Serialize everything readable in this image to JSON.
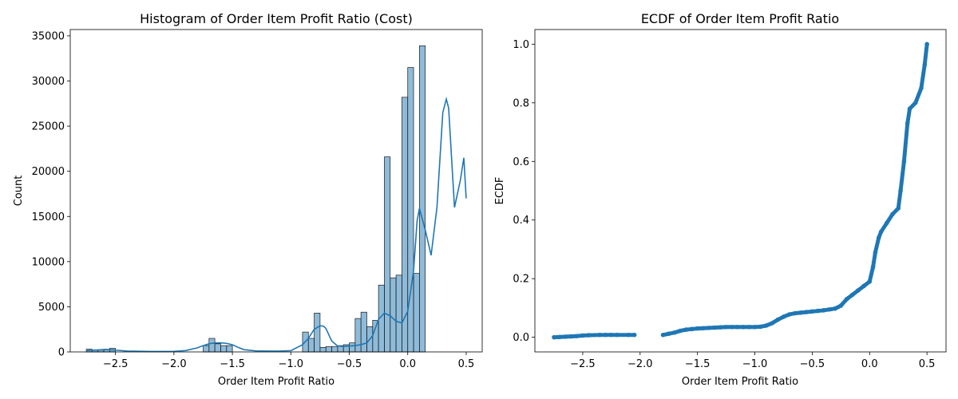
{
  "chart_data": [
    {
      "type": "bar",
      "title": "Histogram of Order Item Profit Ratio (Cost)",
      "xlabel": "Order Item Profit Ratio",
      "ylabel": "Count",
      "xlim": [
        -2.887,
        0.637
      ],
      "ylim": [
        0,
        35700
      ],
      "xticks": [
        -2.5,
        -2.0,
        -1.5,
        -1.0,
        -0.5,
        0.0,
        0.5
      ],
      "xtick_labels": [
        "−2.5",
        "−2.0",
        "−1.5",
        "−1.0",
        "−0.5",
        "0.0",
        "0.5"
      ],
      "yticks": [
        0,
        5000,
        10000,
        15000,
        20000,
        25000,
        30000,
        35000
      ],
      "ytick_labels": [
        "0",
        "5000",
        "10000",
        "15000",
        "20000",
        "25000",
        "30000",
        "35000"
      ],
      "grid": false,
      "colors": {
        "bar_fill": "#1f77b4",
        "bar_fill_opacity": 0.5,
        "bar_edge": "#1a1a1a",
        "kde_line": "#1f77b4"
      },
      "bins": {
        "edges_start": -2.75,
        "bin_width": 0.05,
        "counts": [
          300,
          200,
          200,
          300,
          400,
          0,
          0,
          0,
          0,
          0,
          0,
          0,
          0,
          0,
          0,
          0,
          0,
          0,
          0,
          0,
          700,
          1500,
          900,
          700,
          700,
          0,
          0,
          0,
          0,
          0,
          0,
          0,
          0,
          0,
          0,
          0,
          0,
          2200,
          1500,
          4300,
          500,
          600,
          600,
          700,
          800,
          1000,
          3700,
          4400,
          2800,
          3500,
          7400,
          21600,
          8200,
          8500,
          28200,
          31500,
          8700,
          33900
        ]
      },
      "kde": {
        "x": [
          -2.75,
          -2.6,
          -2.5,
          -2.4,
          -2.2,
          -2.0,
          -1.9,
          -1.8,
          -1.75,
          -1.7,
          -1.65,
          -1.6,
          -1.55,
          -1.5,
          -1.45,
          -1.4,
          -1.3,
          -1.2,
          -1.1,
          -1.0,
          -0.9,
          -0.85,
          -0.8,
          -0.75,
          -0.72,
          -0.7,
          -0.65,
          -0.6,
          -0.55,
          -0.5,
          -0.45,
          -0.4,
          -0.35,
          -0.3,
          -0.25,
          -0.2,
          -0.15,
          -0.1,
          -0.05,
          0.0,
          0.05,
          0.08,
          0.1,
          0.15,
          0.2,
          0.25,
          0.3,
          0.33,
          0.35,
          0.4,
          0.45,
          0.48,
          0.5
        ],
        "y": [
          150,
          260,
          200,
          90,
          50,
          60,
          150,
          450,
          700,
          900,
          1000,
          1000,
          950,
          800,
          500,
          250,
          120,
          90,
          90,
          140,
          800,
          1500,
          2500,
          2900,
          2850,
          2600,
          1200,
          650,
          600,
          650,
          700,
          800,
          1000,
          1800,
          3600,
          4300,
          4000,
          3400,
          3200,
          4500,
          9000,
          14500,
          15900,
          13500,
          10700,
          16000,
          26500,
          28000,
          27000,
          16000,
          19000,
          21500,
          17000
        ]
      }
    },
    {
      "type": "scatter",
      "title": "ECDF of Order Item Profit Ratio",
      "xlabel": "Order Item Profit Ratio",
      "ylabel": "ECDF",
      "xlim": [
        -2.917,
        0.666
      ],
      "ylim": [
        -0.05,
        1.05
      ],
      "xticks": [
        -2.5,
        -2.0,
        -1.5,
        -1.0,
        -0.5,
        0.0,
        0.5
      ],
      "xtick_labels": [
        "−2.5",
        "−2.0",
        "−1.5",
        "−1.0",
        "−0.5",
        "0.0",
        "0.5"
      ],
      "yticks": [
        0.0,
        0.2,
        0.4,
        0.6,
        0.8,
        1.0
      ],
      "ytick_labels": [
        "0.0",
        "0.2",
        "0.4",
        "0.6",
        "0.8",
        "1.0"
      ],
      "grid": false,
      "colors": {
        "marker": "#1f77b4"
      },
      "x": [
        -2.75,
        -2.7,
        -2.65,
        -2.6,
        -2.55,
        -2.5,
        -2.45,
        -2.35,
        -2.3,
        -2.25,
        -2.2,
        -2.1,
        -2.05,
        -1.8,
        -1.75,
        -1.7,
        -1.65,
        -1.6,
        -1.55,
        -1.5,
        -1.45,
        -1.4,
        -1.35,
        -1.3,
        -1.25,
        -1.2,
        -1.15,
        -1.1,
        -1.05,
        -1.0,
        -0.95,
        -0.9,
        -0.85,
        -0.8,
        -0.75,
        -0.7,
        -0.65,
        -0.6,
        -0.55,
        -0.5,
        -0.45,
        -0.4,
        -0.35,
        -0.3,
        -0.25,
        -0.2,
        -0.15,
        -0.1,
        -0.05,
        0.0,
        0.03,
        0.05,
        0.08,
        0.1,
        0.15,
        0.2,
        0.25,
        0.27,
        0.3,
        0.33,
        0.35,
        0.4,
        0.45,
        0.48,
        0.5
      ],
      "y": [
        0.0,
        0.001,
        0.002,
        0.003,
        0.004,
        0.006,
        0.007,
        0.008,
        0.008,
        0.008,
        0.008,
        0.008,
        0.008,
        0.008,
        0.012,
        0.016,
        0.022,
        0.026,
        0.028,
        0.03,
        0.031,
        0.032,
        0.033,
        0.034,
        0.035,
        0.035,
        0.035,
        0.035,
        0.035,
        0.035,
        0.036,
        0.04,
        0.048,
        0.06,
        0.07,
        0.078,
        0.082,
        0.084,
        0.086,
        0.088,
        0.09,
        0.092,
        0.095,
        0.098,
        0.108,
        0.13,
        0.145,
        0.16,
        0.175,
        0.19,
        0.24,
        0.29,
        0.34,
        0.36,
        0.39,
        0.42,
        0.44,
        0.5,
        0.6,
        0.73,
        0.78,
        0.8,
        0.85,
        0.93,
        1.0
      ]
    }
  ]
}
